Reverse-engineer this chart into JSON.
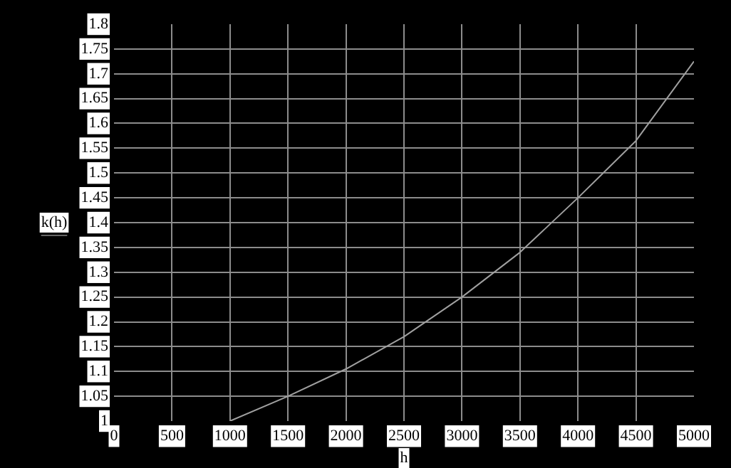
{
  "chart_data": {
    "type": "line",
    "xlabel": "h",
    "ylabel": "k(h)",
    "x": [
      1000,
      1500,
      2000,
      2500,
      3000,
      3500,
      4000,
      4500,
      5000
    ],
    "series": [
      {
        "color": "#a0a0a0",
        "values": [
          1.0,
          1.05,
          1.105,
          1.17,
          1.25,
          1.34,
          1.45,
          1.565,
          1.725
        ]
      }
    ],
    "xlim": [
      0,
      5000
    ],
    "xticks": [
      0,
      500,
      1000,
      1500,
      2000,
      2500,
      3000,
      3500,
      4000,
      4500,
      5000
    ],
    "ylim": [
      1,
      1.8
    ],
    "yticks": [
      1,
      1.05,
      1.1,
      1.15,
      1.2,
      1.25,
      1.3,
      1.35,
      1.4,
      1.45,
      1.5,
      1.55,
      1.6,
      1.65,
      1.7,
      1.75,
      1.8
    ],
    "grid": true,
    "legend": false,
    "marker": "none",
    "line_style": "solid"
  }
}
